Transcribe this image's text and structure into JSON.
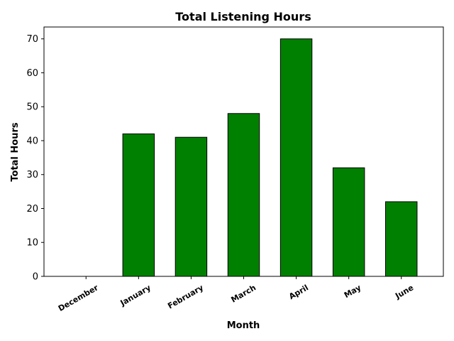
{
  "chart_data": {
    "type": "bar",
    "title": "Total Listening Hours",
    "xlabel": "Month",
    "ylabel": "Total Hours",
    "categories": [
      "December",
      "January",
      "February",
      "March",
      "April",
      "May",
      "June"
    ],
    "values": [
      0,
      42,
      41,
      48,
      70,
      32,
      22
    ],
    "ylim": [
      0,
      73.5
    ],
    "yticks": [
      0,
      10,
      20,
      30,
      40,
      50,
      60,
      70
    ],
    "bar_color": "#008000",
    "edge_color": "#000000",
    "grid": false,
    "legend": "none"
  }
}
